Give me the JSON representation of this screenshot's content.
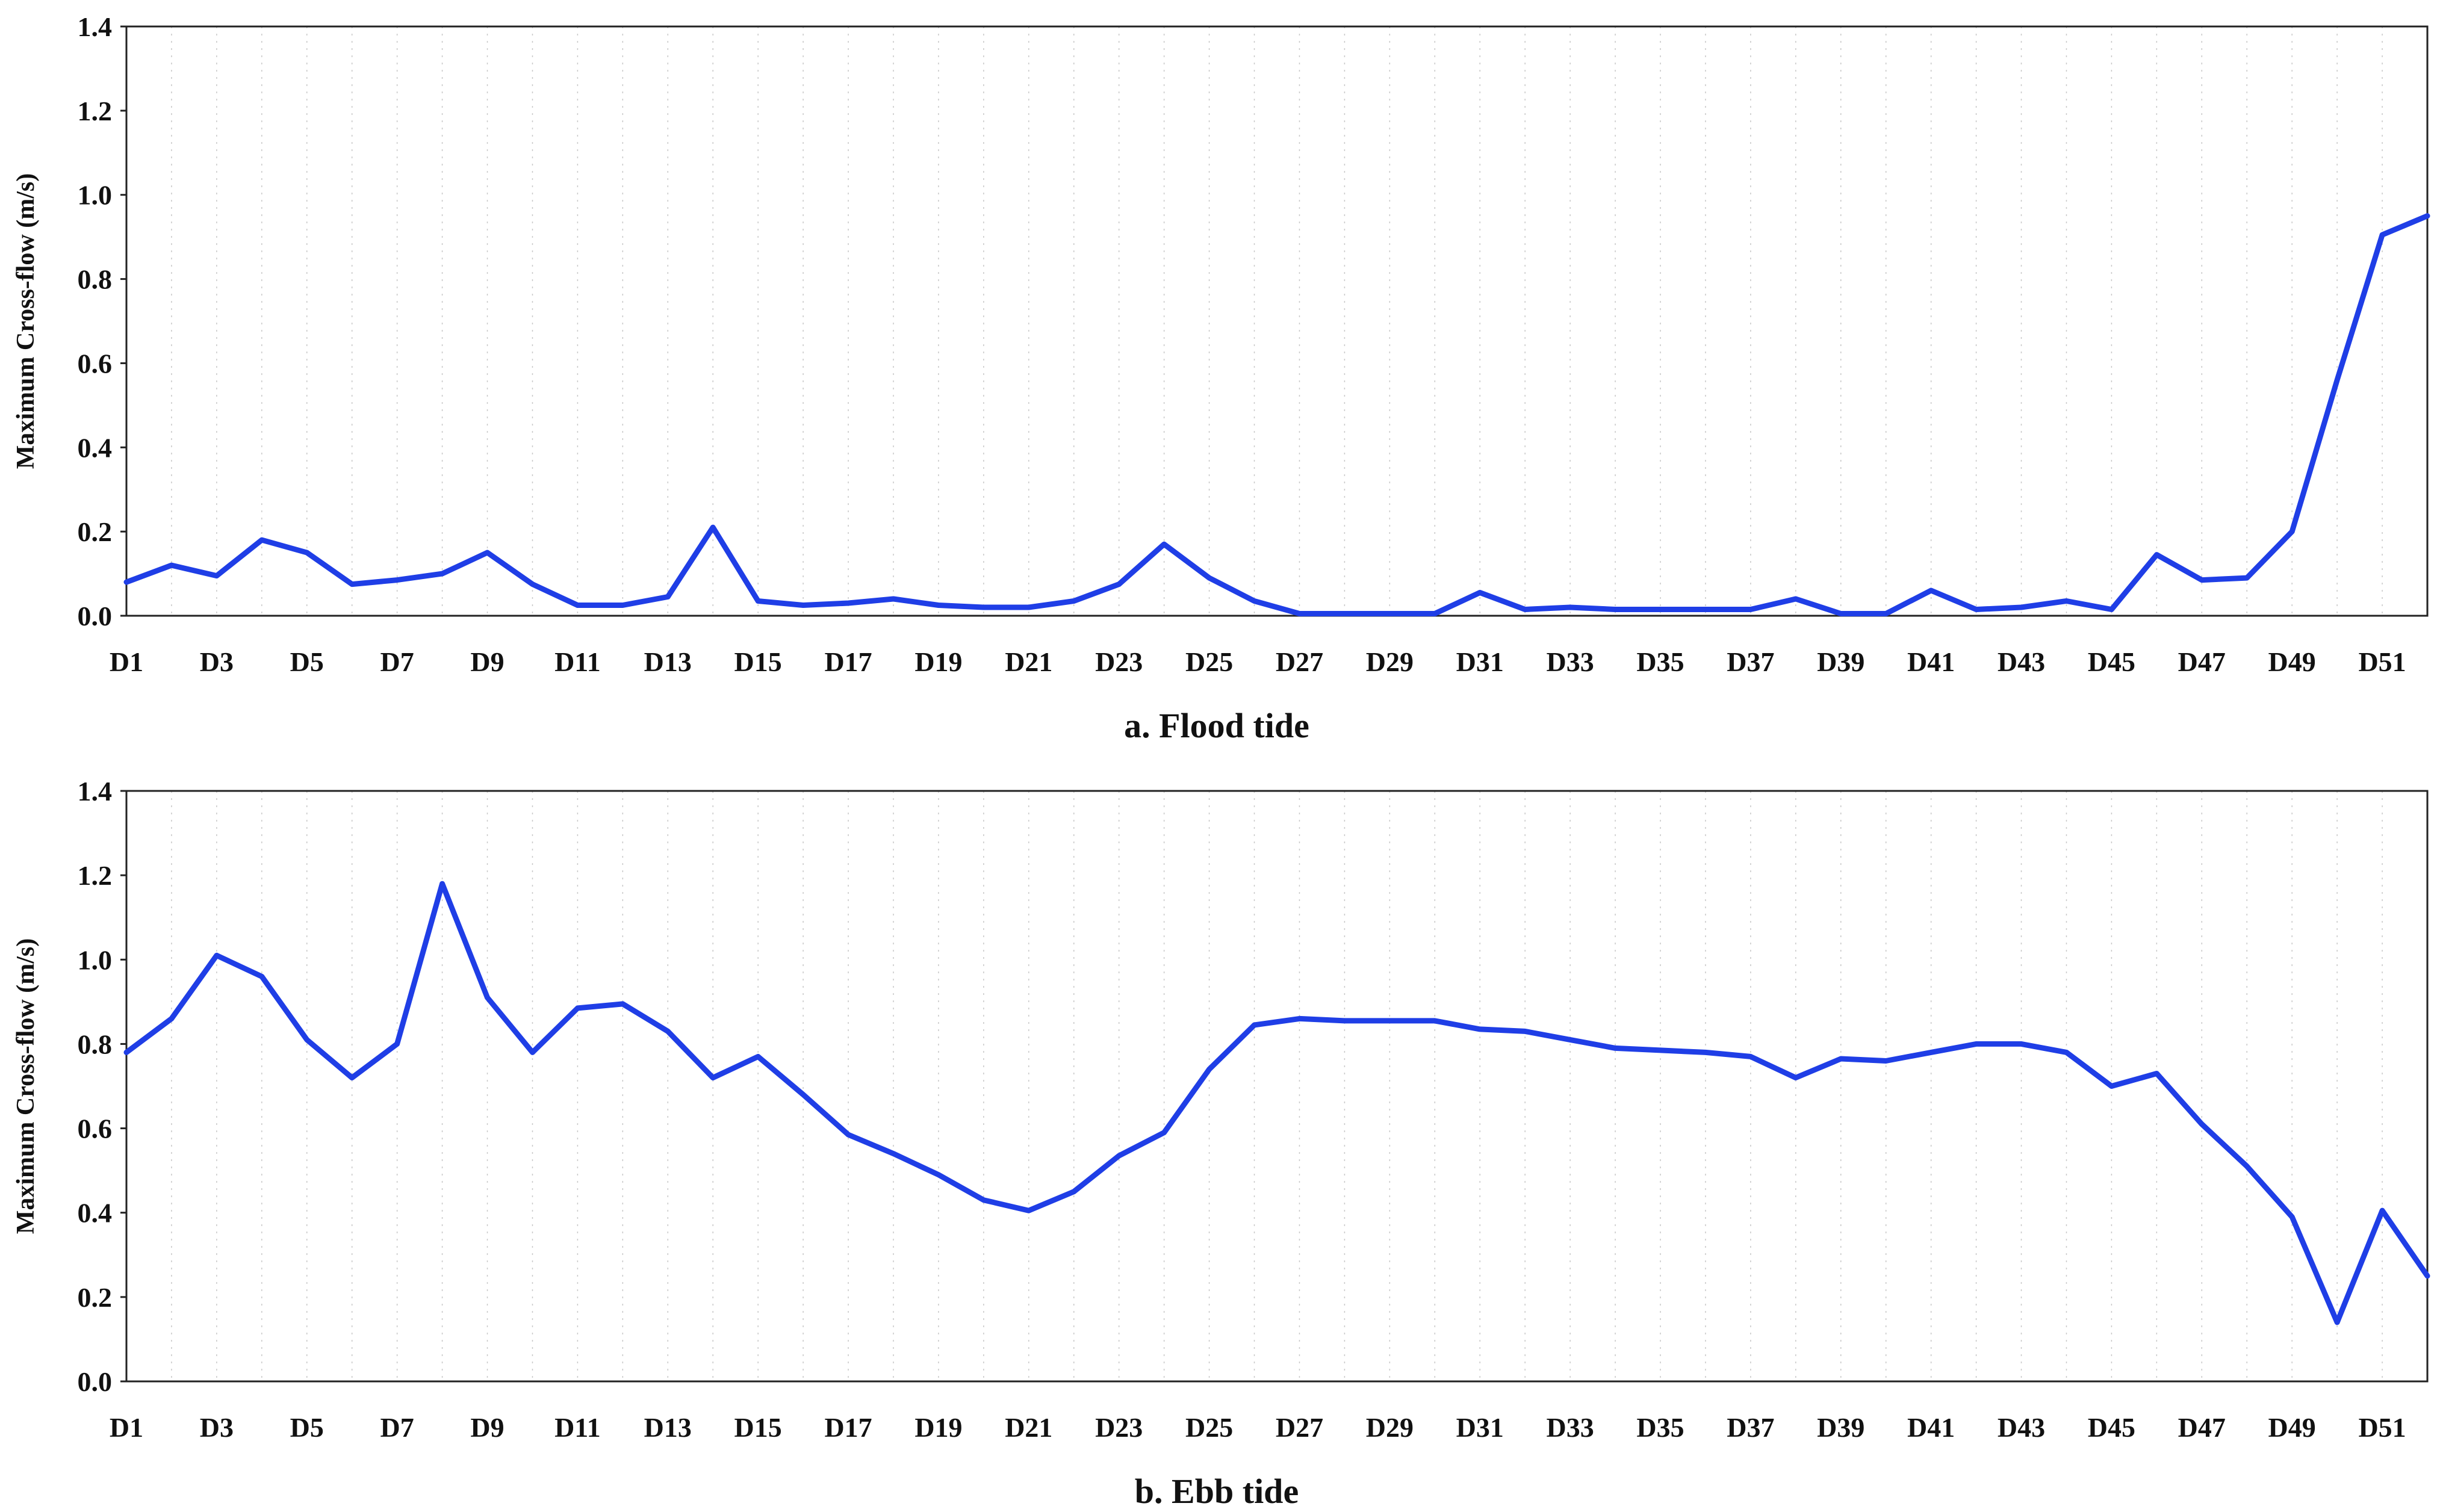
{
  "chart_data": [
    {
      "type": "line",
      "caption": "a. Flood tide",
      "ylabel": "Maximum Cross-flow (m/s)",
      "ylim": [
        0,
        1.4
      ],
      "yticks": [
        "0.0",
        "0.2",
        "0.4",
        "0.6",
        "0.8",
        "1.0",
        "1.2",
        "1.4"
      ],
      "xtick_labels": [
        "D1",
        "D3",
        "D5",
        "D7",
        "D9",
        "D11",
        "D13",
        "D15",
        "D17",
        "D19",
        "D21",
        "D23",
        "D25",
        "D27",
        "D29",
        "D31",
        "D33",
        "D35",
        "D37",
        "D39",
        "D41",
        "D43",
        "D45",
        "D47",
        "D49",
        "D51"
      ],
      "color": "#1f3ee6",
      "x": [
        "D1",
        "D2",
        "D3",
        "D4",
        "D5",
        "D6",
        "D7",
        "D8",
        "D9",
        "D10",
        "D11",
        "D12",
        "D13",
        "D14",
        "D15",
        "D16",
        "D17",
        "D18",
        "D19",
        "D20",
        "D21",
        "D22",
        "D23",
        "D24",
        "D25",
        "D26",
        "D27",
        "D28",
        "D29",
        "D30",
        "D31",
        "D32",
        "D33",
        "D34",
        "D35",
        "D36",
        "D37",
        "D38",
        "D39",
        "D40",
        "D41",
        "D42",
        "D43",
        "D44",
        "D45",
        "D46",
        "D47",
        "D48",
        "D49",
        "D50",
        "D51",
        "D52"
      ],
      "values": [
        0.08,
        0.12,
        0.095,
        0.18,
        0.15,
        0.075,
        0.085,
        0.1,
        0.15,
        0.075,
        0.025,
        0.025,
        0.045,
        0.21,
        0.035,
        0.025,
        0.03,
        0.04,
        0.025,
        0.02,
        0.02,
        0.035,
        0.075,
        0.17,
        0.09,
        0.035,
        0.005,
        0.005,
        0.005,
        0.005,
        0.055,
        0.015,
        0.02,
        0.015,
        0.015,
        0.015,
        0.015,
        0.04,
        0.005,
        0.005,
        0.06,
        0.015,
        0.02,
        0.035,
        0.015,
        0.145,
        0.085,
        0.09,
        0.2,
        0.56,
        0.905,
        0.95
      ]
    },
    {
      "type": "line",
      "caption": "b. Ebb tide",
      "ylabel": "Maximum Cross-flow (m/s)",
      "ylim": [
        0,
        1.4
      ],
      "yticks": [
        "0.0",
        "0.2",
        "0.4",
        "0.6",
        "0.8",
        "1.0",
        "1.2",
        "1.4"
      ],
      "xtick_labels": [
        "D1",
        "D3",
        "D5",
        "D7",
        "D9",
        "D11",
        "D13",
        "D15",
        "D17",
        "D19",
        "D21",
        "D23",
        "D25",
        "D27",
        "D29",
        "D31",
        "D33",
        "D35",
        "D37",
        "D39",
        "D41",
        "D43",
        "D45",
        "D47",
        "D49",
        "D51"
      ],
      "color": "#1f3ee6",
      "x": [
        "D1",
        "D2",
        "D3",
        "D4",
        "D5",
        "D6",
        "D7",
        "D8",
        "D9",
        "D10",
        "D11",
        "D12",
        "D13",
        "D14",
        "D15",
        "D16",
        "D17",
        "D18",
        "D19",
        "D20",
        "D21",
        "D22",
        "D23",
        "D24",
        "D25",
        "D26",
        "D27",
        "D28",
        "D29",
        "D30",
        "D31",
        "D32",
        "D33",
        "D34",
        "D35",
        "D36",
        "D37",
        "D38",
        "D39",
        "D40",
        "D41",
        "D42",
        "D43",
        "D44",
        "D45",
        "D46",
        "D47",
        "D48",
        "D49",
        "D50",
        "D51",
        "D52"
      ],
      "values": [
        0.78,
        0.86,
        1.01,
        0.96,
        0.81,
        0.72,
        0.8,
        1.18,
        0.91,
        0.78,
        0.885,
        0.895,
        0.83,
        0.72,
        0.77,
        0.68,
        0.585,
        0.54,
        0.49,
        0.43,
        0.405,
        0.45,
        0.535,
        0.59,
        0.74,
        0.845,
        0.86,
        0.855,
        0.855,
        0.855,
        0.835,
        0.83,
        0.81,
        0.79,
        0.785,
        0.78,
        0.77,
        0.72,
        0.765,
        0.76,
        0.78,
        0.8,
        0.8,
        0.78,
        0.7,
        0.73,
        0.61,
        0.51,
        0.39,
        0.14,
        0.405,
        0.25
      ]
    }
  ]
}
